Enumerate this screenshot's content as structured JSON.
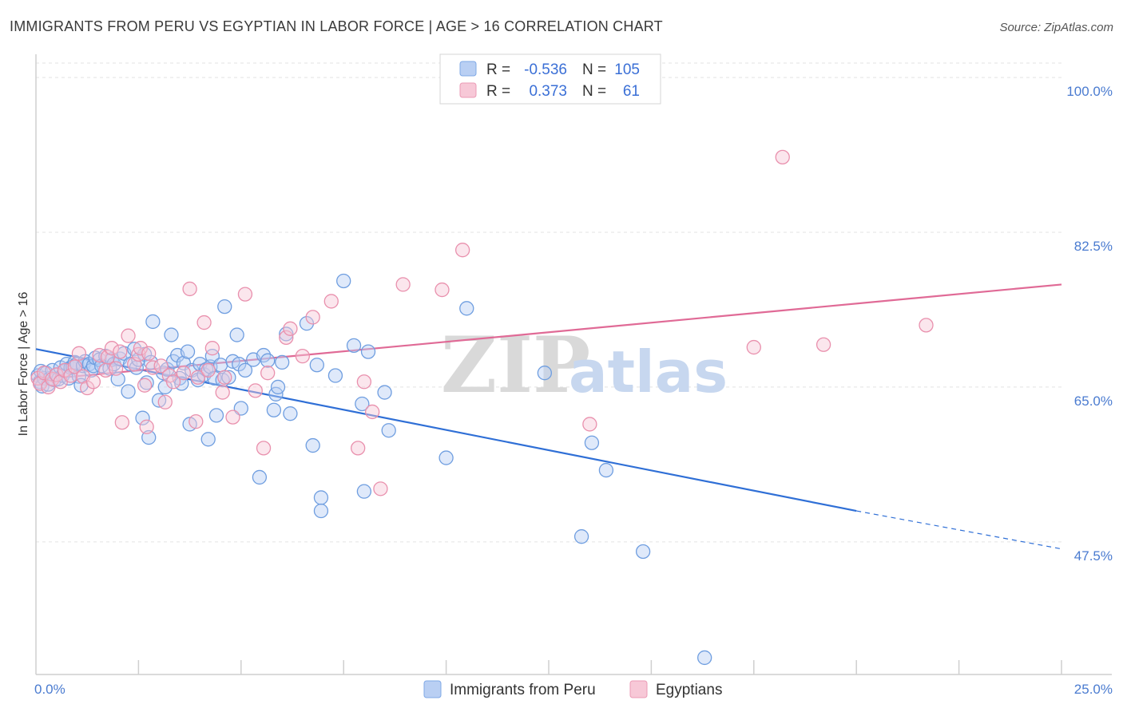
{
  "title": "IMMIGRANTS FROM PERU VS EGYPTIAN IN LABOR FORCE | AGE > 16 CORRELATION CHART",
  "source": "Source: ZipAtlas.com",
  "watermark": {
    "zip": "ZIP",
    "atlas": "atlas"
  },
  "legend": {
    "r_label": "R =",
    "n_label": "N =",
    "rows": [
      {
        "r": "-0.536",
        "n": "105",
        "color": "#7fa8e6",
        "fill": "#b9cff3"
      },
      {
        "r": "0.373",
        "n": "61",
        "color": "#eb9ab5",
        "fill": "#f7c8d7"
      }
    ]
  },
  "bottom_legend": [
    {
      "label": "Immigrants from Peru",
      "color": "#7fa8e6",
      "fill": "#b9cff3"
    },
    {
      "label": "Egyptians",
      "color": "#eb9ab5",
      "fill": "#f7c8d7"
    }
  ],
  "chart_data": {
    "type": "scatter",
    "title": "IMMIGRANTS FROM PERU VS EGYPTIAN IN LABOR FORCE | AGE > 16 CORRELATION CHART",
    "xlabel": "",
    "ylabel": "In Labor Force | Age > 16",
    "xlim": [
      0,
      25
    ],
    "ylim": [
      32.5,
      102
    ],
    "x_tick_labels": [
      "0.0%",
      "25.0%"
    ],
    "y_ticks": [
      47.5,
      65.0,
      82.5,
      100.0
    ],
    "y_tick_labels": [
      "47.5%",
      "65.0%",
      "82.5%",
      "100.0%"
    ],
    "grid": true,
    "legend_position": "top-center",
    "series": [
      {
        "name": "Immigrants from Peru",
        "stroke": "#6f9ee0",
        "fill": "#b9cff3",
        "trend": {
          "x": [
            0.0,
            20.0
          ],
          "y": [
            69.3,
            51.0
          ],
          "dash_to": [
            25.0,
            46.7
          ],
          "color": "#2f6fd6"
        },
        "points": [
          [
            0.05,
            66.3
          ],
          [
            0.1,
            65.6
          ],
          [
            0.12,
            66.8
          ],
          [
            0.15,
            65.1
          ],
          [
            0.2,
            66.0
          ],
          [
            0.25,
            66.6
          ],
          [
            0.3,
            65.3
          ],
          [
            0.35,
            66.0
          ],
          [
            0.4,
            66.9
          ],
          [
            0.45,
            65.8
          ],
          [
            0.5,
            66.4
          ],
          [
            0.55,
            65.9
          ],
          [
            0.6,
            67.2
          ],
          [
            0.65,
            66.3
          ],
          [
            0.7,
            66.8
          ],
          [
            0.75,
            67.6
          ],
          [
            0.8,
            66.0
          ],
          [
            0.85,
            67.2
          ],
          [
            0.9,
            67.3
          ],
          [
            0.95,
            67.8
          ],
          [
            1.0,
            67.6
          ],
          [
            1.05,
            66.2
          ],
          [
            1.1,
            65.2
          ],
          [
            1.15,
            67.4
          ],
          [
            1.2,
            67.9
          ],
          [
            1.3,
            67.6
          ],
          [
            1.35,
            66.9
          ],
          [
            1.4,
            67.4
          ],
          [
            1.45,
            68.3
          ],
          [
            1.55,
            68.1
          ],
          [
            1.6,
            67.4
          ],
          [
            1.7,
            68.5
          ],
          [
            1.8,
            67.1
          ],
          [
            1.85,
            68.1
          ],
          [
            1.9,
            67.6
          ],
          [
            2.0,
            65.9
          ],
          [
            2.05,
            68.2
          ],
          [
            2.15,
            68.8
          ],
          [
            2.25,
            64.5
          ],
          [
            2.3,
            67.6
          ],
          [
            2.4,
            69.3
          ],
          [
            2.45,
            67.2
          ],
          [
            2.5,
            68.1
          ],
          [
            2.6,
            61.5
          ],
          [
            2.65,
            68.7
          ],
          [
            2.7,
            65.5
          ],
          [
            2.75,
            59.3
          ],
          [
            2.8,
            67.8
          ],
          [
            2.85,
            72.4
          ],
          [
            3.0,
            63.5
          ],
          [
            3.1,
            66.6
          ],
          [
            3.15,
            65.0
          ],
          [
            3.2,
            67.0
          ],
          [
            3.3,
            70.9
          ],
          [
            3.35,
            67.9
          ],
          [
            3.45,
            68.6
          ],
          [
            3.5,
            66.0
          ],
          [
            3.55,
            65.4
          ],
          [
            3.6,
            67.7
          ],
          [
            3.7,
            69.0
          ],
          [
            3.75,
            60.8
          ],
          [
            3.8,
            66.9
          ],
          [
            3.95,
            65.8
          ],
          [
            4.0,
            67.6
          ],
          [
            4.1,
            66.4
          ],
          [
            4.15,
            67.0
          ],
          [
            4.2,
            59.1
          ],
          [
            4.25,
            67.3
          ],
          [
            4.3,
            68.5
          ],
          [
            4.35,
            66.0
          ],
          [
            4.4,
            61.8
          ],
          [
            4.5,
            67.5
          ],
          [
            4.55,
            65.8
          ],
          [
            4.6,
            74.1
          ],
          [
            4.7,
            66.1
          ],
          [
            4.8,
            67.9
          ],
          [
            4.9,
            70.9
          ],
          [
            4.95,
            67.6
          ],
          [
            5.0,
            62.6
          ],
          [
            5.1,
            66.9
          ],
          [
            5.3,
            68.1
          ],
          [
            5.45,
            54.8
          ],
          [
            5.55,
            68.6
          ],
          [
            5.65,
            68.0
          ],
          [
            5.8,
            62.4
          ],
          [
            5.85,
            64.2
          ],
          [
            5.9,
            65.0
          ],
          [
            6.0,
            67.8
          ],
          [
            6.1,
            71.0
          ],
          [
            6.2,
            62.0
          ],
          [
            6.6,
            72.2
          ],
          [
            6.75,
            58.4
          ],
          [
            6.85,
            67.5
          ],
          [
            6.95,
            52.5
          ],
          [
            6.95,
            51.0
          ],
          [
            7.3,
            66.3
          ],
          [
            7.5,
            77.0
          ],
          [
            7.75,
            69.7
          ],
          [
            7.95,
            63.1
          ],
          [
            8.0,
            53.2
          ],
          [
            8.1,
            69.0
          ],
          [
            8.5,
            64.4
          ],
          [
            8.6,
            60.1
          ],
          [
            10.0,
            57.0
          ],
          [
            10.5,
            73.9
          ],
          [
            12.4,
            66.6
          ],
          [
            13.3,
            48.1
          ],
          [
            13.55,
            58.7
          ],
          [
            13.9,
            55.6
          ],
          [
            14.8,
            46.4
          ],
          [
            16.3,
            34.4
          ]
        ]
      },
      {
        "name": "Egyptians",
        "stroke": "#e990ad",
        "fill": "#f7c8d7",
        "trend": {
          "x": [
            0.0,
            25.0
          ],
          "y": [
            65.8,
            76.6
          ],
          "color": "#e06a96"
        },
        "points": [
          [
            0.05,
            66.0
          ],
          [
            0.1,
            65.4
          ],
          [
            0.2,
            66.6
          ],
          [
            0.3,
            65.0
          ],
          [
            0.4,
            65.9
          ],
          [
            0.5,
            66.4
          ],
          [
            0.6,
            65.6
          ],
          [
            0.7,
            66.9
          ],
          [
            0.85,
            66.3
          ],
          [
            0.95,
            67.3
          ],
          [
            1.05,
            68.8
          ],
          [
            1.15,
            66.2
          ],
          [
            1.25,
            64.9
          ],
          [
            1.4,
            65.6
          ],
          [
            1.55,
            68.6
          ],
          [
            1.7,
            66.9
          ],
          [
            1.75,
            68.4
          ],
          [
            1.85,
            69.4
          ],
          [
            1.95,
            67.1
          ],
          [
            2.05,
            69.0
          ],
          [
            2.1,
            61.0
          ],
          [
            2.25,
            70.8
          ],
          [
            2.4,
            67.6
          ],
          [
            2.5,
            68.7
          ],
          [
            2.55,
            69.4
          ],
          [
            2.65,
            65.2
          ],
          [
            2.7,
            60.5
          ],
          [
            2.75,
            68.8
          ],
          [
            2.85,
            67.2
          ],
          [
            3.05,
            67.4
          ],
          [
            3.15,
            63.3
          ],
          [
            3.25,
            66.3
          ],
          [
            3.35,
            65.6
          ],
          [
            3.6,
            66.6
          ],
          [
            3.75,
            76.1
          ],
          [
            3.9,
            61.1
          ],
          [
            3.95,
            66.1
          ],
          [
            4.1,
            72.3
          ],
          [
            4.2,
            66.9
          ],
          [
            4.3,
            69.4
          ],
          [
            4.55,
            64.4
          ],
          [
            4.6,
            66.1
          ],
          [
            4.8,
            61.6
          ],
          [
            5.1,
            75.5
          ],
          [
            5.35,
            64.6
          ],
          [
            5.55,
            58.1
          ],
          [
            5.65,
            66.6
          ],
          [
            6.1,
            70.6
          ],
          [
            6.2,
            71.6
          ],
          [
            6.5,
            68.5
          ],
          [
            6.75,
            72.9
          ],
          [
            7.2,
            74.7
          ],
          [
            7.85,
            58.1
          ],
          [
            8.0,
            65.6
          ],
          [
            8.2,
            62.2
          ],
          [
            8.4,
            53.5
          ],
          [
            8.95,
            76.6
          ],
          [
            9.9,
            76.0
          ],
          [
            10.4,
            80.5
          ],
          [
            13.5,
            60.8
          ],
          [
            17.5,
            69.5
          ],
          [
            18.2,
            91.0
          ],
          [
            19.2,
            69.8
          ],
          [
            21.7,
            72.0
          ]
        ]
      }
    ]
  }
}
